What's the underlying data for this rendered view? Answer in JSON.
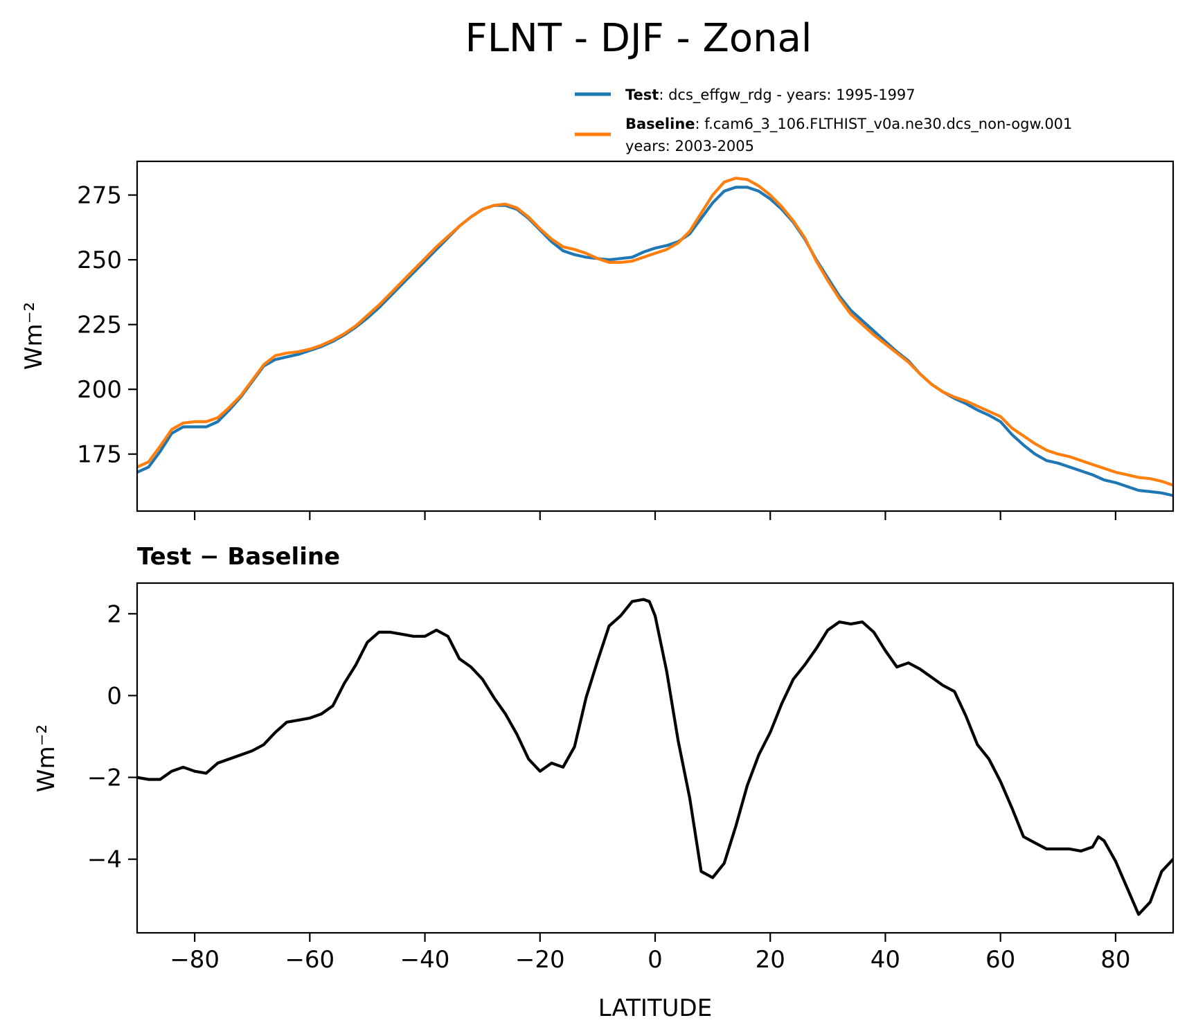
{
  "figure": {
    "title": "FLNT - DJF - Zonal"
  },
  "legend": {
    "test": {
      "bold": "Test",
      "rest": ": dcs_effgw_rdg - years: 1995-1997"
    },
    "baseline": {
      "bold": "Baseline",
      "rest": ": f.cam6_3_106.FLTHIST_v0a.ne30.dcs_non-ogw.001",
      "line2": "years: 2003-2005"
    }
  },
  "chart_data": [
    {
      "type": "line",
      "xlabel": "",
      "ylabel": "Wm⁻²",
      "xlim": [
        -90,
        90
      ],
      "ylim": [
        153,
        288
      ],
      "xticks": [
        -80,
        -60,
        -40,
        -20,
        0,
        20,
        40,
        60,
        80
      ],
      "xtick_labels_visible": false,
      "yticks": [
        175,
        200,
        225,
        250,
        275
      ],
      "grid": false,
      "legend": "top-right above axes",
      "series": [
        {
          "name": "Test",
          "color": "#1f77b4",
          "x": [
            -90,
            -88,
            -86,
            -84,
            -82,
            -80,
            -78,
            -76,
            -74,
            -72,
            -70,
            -68,
            -66,
            -64,
            -62,
            -60,
            -58,
            -56,
            -54,
            -52,
            -50,
            -48,
            -46,
            -44,
            -42,
            -40,
            -38,
            -36,
            -34,
            -32,
            -30,
            -28,
            -26,
            -24,
            -22,
            -20,
            -18,
            -16,
            -14,
            -12,
            -10,
            -8,
            -6,
            -4,
            -2,
            0,
            2,
            4,
            6,
            8,
            10,
            12,
            14,
            16,
            18,
            20,
            22,
            24,
            26,
            28,
            30,
            32,
            34,
            36,
            38,
            40,
            42,
            44,
            46,
            48,
            50,
            52,
            54,
            56,
            58,
            60,
            62,
            64,
            66,
            68,
            70,
            72,
            74,
            76,
            78,
            80,
            82,
            84,
            86,
            88,
            90
          ],
          "y": [
            168,
            170,
            176,
            183,
            185.5,
            185.5,
            185.5,
            187.5,
            192,
            197,
            203,
            209,
            211.5,
            212.5,
            213.5,
            215,
            216.5,
            218.5,
            221,
            224,
            227.5,
            231.5,
            236,
            240.5,
            245,
            249.5,
            254,
            258.5,
            263,
            266.5,
            269.5,
            271,
            271,
            269.5,
            266,
            261.5,
            257,
            253.5,
            252,
            251,
            250.5,
            250,
            250.5,
            251,
            253,
            254.5,
            255.5,
            257,
            260,
            266,
            272,
            276.5,
            278,
            278,
            276.5,
            273.5,
            269.5,
            264.5,
            258,
            250,
            243,
            236,
            230.5,
            226.5,
            222.5,
            218.5,
            214.5,
            211,
            206,
            202,
            199,
            196.5,
            194.5,
            192,
            190,
            187.5,
            182.5,
            178.5,
            175,
            172.5,
            171.5,
            170,
            168.5,
            167,
            165,
            164,
            162.5,
            161,
            160.5,
            160,
            159
          ]
        },
        {
          "name": "Baseline",
          "color": "#ff7f0e",
          "x": [
            -90,
            -88,
            -86,
            -84,
            -82,
            -80,
            -78,
            -76,
            -74,
            -72,
            -70,
            -68,
            -66,
            -64,
            -62,
            -60,
            -58,
            -56,
            -54,
            -52,
            -50,
            -48,
            -46,
            -44,
            -42,
            -40,
            -38,
            -36,
            -34,
            -32,
            -30,
            -28,
            -26,
            -24,
            -22,
            -20,
            -18,
            -16,
            -14,
            -12,
            -10,
            -8,
            -6,
            -4,
            -2,
            0,
            2,
            4,
            6,
            8,
            10,
            12,
            14,
            16,
            18,
            20,
            22,
            24,
            26,
            28,
            30,
            32,
            34,
            36,
            38,
            40,
            42,
            44,
            46,
            48,
            50,
            52,
            54,
            56,
            58,
            60,
            62,
            64,
            66,
            68,
            70,
            72,
            74,
            76,
            78,
            80,
            82,
            84,
            86,
            88,
            90
          ],
          "y": [
            170,
            172,
            178,
            184.5,
            187,
            187.5,
            187.5,
            189,
            193,
            197.5,
            203.5,
            209.5,
            213,
            214,
            214.5,
            215.5,
            217,
            219,
            221.5,
            224.5,
            228.5,
            232.5,
            237,
            241.5,
            246,
            250.5,
            255,
            259,
            263,
            266.5,
            269.5,
            271,
            271.5,
            270,
            266.5,
            262,
            258,
            255,
            254,
            252.5,
            250.5,
            249,
            249,
            249.5,
            251,
            252.5,
            254,
            256.5,
            261,
            268,
            275,
            280,
            281.5,
            281,
            278.5,
            275,
            270.5,
            265,
            258.5,
            249.5,
            242,
            235,
            229,
            225,
            221,
            217.5,
            214,
            210.5,
            206,
            202,
            199,
            197,
            195.5,
            193.5,
            191.5,
            189.5,
            185,
            182,
            179,
            176.5,
            175,
            174,
            172.5,
            171,
            169.5,
            168,
            167,
            166,
            165.5,
            164.5,
            163
          ]
        }
      ]
    },
    {
      "type": "line",
      "title": "Test − Baseline",
      "xlabel": "LATITUDE",
      "ylabel": "Wm⁻²",
      "xlim": [
        -90,
        90
      ],
      "ylim": [
        -5.8,
        2.75
      ],
      "xticks": [
        -80,
        -60,
        -40,
        -20,
        0,
        20,
        40,
        60,
        80
      ],
      "xtick_labels": [
        "−80",
        "−60",
        "−40",
        "−20",
        "0",
        "20",
        "40",
        "60",
        "80"
      ],
      "yticks": [
        -4,
        -2,
        0,
        2
      ],
      "ytick_labels": [
        "−4",
        "−2",
        "0",
        "2"
      ],
      "grid": false,
      "series": [
        {
          "color": "#000000",
          "x": [
            -90,
            -88,
            -86,
            -84,
            -82,
            -80,
            -78,
            -76,
            -74,
            -72,
            -70,
            -68,
            -66,
            -64,
            -62,
            -60,
            -58,
            -56,
            -54,
            -52,
            -50,
            -48,
            -46,
            -44,
            -42,
            -40,
            -38,
            -36,
            -34,
            -32,
            -30,
            -28,
            -26,
            -24,
            -22,
            -20,
            -18,
            -16,
            -14,
            -12,
            -10,
            -8,
            -6,
            -4,
            -2,
            -1,
            0,
            2,
            4,
            6,
            8,
            10,
            12,
            14,
            16,
            18,
            20,
            22,
            24,
            26,
            28,
            30,
            32,
            34,
            36,
            38,
            40,
            42,
            44,
            46,
            48,
            50,
            52,
            54,
            56,
            58,
            60,
            62,
            64,
            66,
            68,
            70,
            72,
            74,
            76,
            77,
            78,
            80,
            82,
            84,
            86,
            88,
            90
          ],
          "y": [
            -2,
            -2.05,
            -2.05,
            -1.85,
            -1.75,
            -1.85,
            -1.9,
            -1.65,
            -1.55,
            -1.45,
            -1.35,
            -1.2,
            -0.9,
            -0.65,
            -0.6,
            -0.55,
            -0.45,
            -0.25,
            0.3,
            0.75,
            1.3,
            1.55,
            1.55,
            1.5,
            1.45,
            1.45,
            1.6,
            1.45,
            0.9,
            0.7,
            0.4,
            -0.05,
            -0.45,
            -0.95,
            -1.55,
            -1.85,
            -1.65,
            -1.75,
            -1.25,
            -0.05,
            0.85,
            1.7,
            1.95,
            2.3,
            2.35,
            2.3,
            1.95,
            0.6,
            -1.1,
            -2.5,
            -4.3,
            -4.45,
            -4.1,
            -3.2,
            -2.2,
            -1.45,
            -0.9,
            -0.2,
            0.4,
            0.75,
            1.15,
            1.6,
            1.8,
            1.75,
            1.8,
            1.55,
            1.1,
            0.7,
            0.8,
            0.65,
            0.45,
            0.25,
            0.1,
            -0.5,
            -1.2,
            -1.55,
            -2.1,
            -2.75,
            -3.45,
            -3.6,
            -3.75,
            -3.75,
            -3.75,
            -3.8,
            -3.7,
            -3.45,
            -3.55,
            -4.05,
            -4.7,
            -5.35,
            -5.05,
            -4.3,
            -4.0
          ]
        }
      ]
    }
  ]
}
